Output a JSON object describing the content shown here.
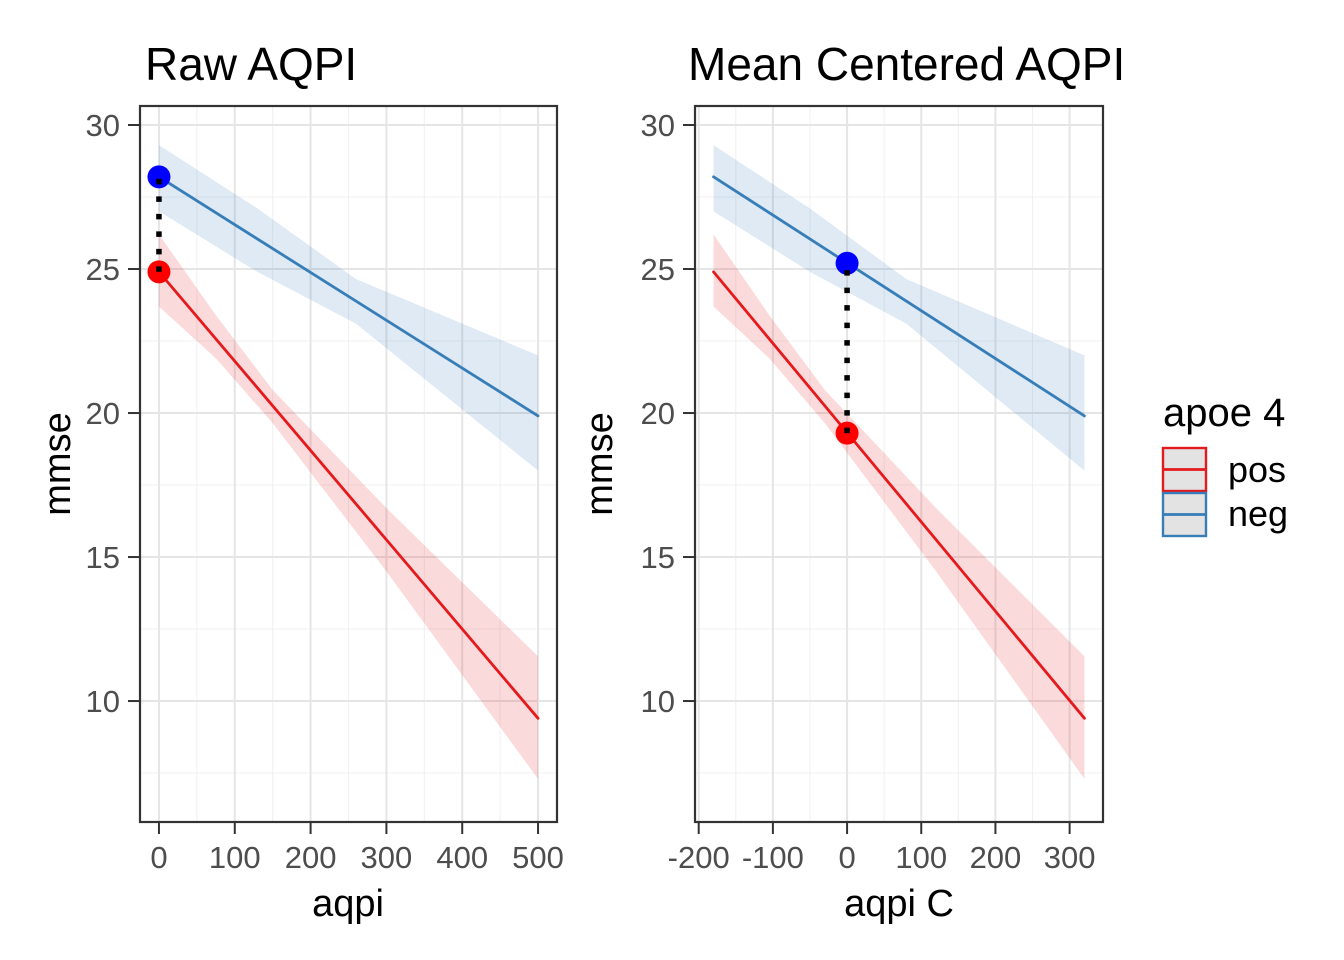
{
  "figure": {
    "background": "#FFFFFF",
    "panel_background": "#FFFFFF",
    "panel_border_color": "#333333",
    "grid_major_color": "#E5E5E5",
    "grid_minor_color": "#F0F0F0",
    "tick_color": "#333333",
    "tick_label_color": "#4D4D4D",
    "connector_color": "#000000"
  },
  "legend": {
    "title": "apoe 4",
    "position": "right",
    "key_fill": "#E3E3E3",
    "entries": [
      {
        "label": "pos",
        "color": "#E41A1C"
      },
      {
        "label": "neg",
        "color": "#377EB8"
      }
    ]
  },
  "chart_data": [
    {
      "type": "line",
      "title": "Raw AQPI",
      "xlabel": "aqpi",
      "ylabel": "mmse",
      "grid": true,
      "xlim": [
        -25,
        525
      ],
      "ylim": [
        5.8,
        30.66
      ],
      "x_ticks": [
        0,
        100,
        200,
        300,
        400,
        500
      ],
      "y_ticks": [
        10,
        15,
        20,
        25,
        30
      ],
      "x_minor": [
        50,
        150,
        250,
        350,
        450
      ],
      "y_minor": [
        7.5,
        12.5,
        17.5,
        22.5,
        27.5
      ],
      "series": [
        {
          "name": "neg",
          "color": "#377EB8",
          "x": [
            0,
            500
          ],
          "y": [
            28.2,
            19.9
          ],
          "ribbon": {
            "x": [
              0,
              130,
              260,
              500
            ],
            "upper": [
              29.3,
              27.1,
              24.65,
              22.0
            ],
            "lower": [
              27.0,
              24.9,
              23.1,
              18.0
            ]
          }
        },
        {
          "name": "pos",
          "color": "#E41A1C",
          "x": [
            0,
            500
          ],
          "y": [
            24.9,
            9.4
          ],
          "ribbon": {
            "x": [
              0,
              75,
              150,
              300,
              500
            ],
            "upper": [
              26.2,
              23.4,
              20.8,
              16.7,
              11.55
            ],
            "lower": [
              23.7,
              21.9,
              19.65,
              14.5,
              7.3
            ]
          }
        }
      ],
      "points": [
        {
          "series": "neg",
          "x": 0,
          "y": 28.2,
          "color": "#0000FF"
        },
        {
          "series": "pos",
          "x": 0,
          "y": 24.9,
          "color": "#FF0000"
        }
      ],
      "connector": {
        "x": 0,
        "y1": 24.9,
        "y2": 28.2
      }
    },
    {
      "type": "line",
      "title": "Mean Centered AQPI",
      "xlabel": "aqpi C",
      "ylabel": "mmse",
      "grid": true,
      "xlim": [
        -205,
        345
      ],
      "ylim": [
        5.8,
        30.66
      ],
      "x_ticks": [
        -200,
        -100,
        0,
        100,
        200,
        300
      ],
      "y_ticks": [
        10,
        15,
        20,
        25,
        30
      ],
      "x_minor": [
        -150,
        -50,
        50,
        150,
        250
      ],
      "y_minor": [
        7.5,
        12.5,
        17.5,
        22.5,
        27.5
      ],
      "series": [
        {
          "name": "neg",
          "color": "#377EB8",
          "x": [
            -180,
            320
          ],
          "y": [
            28.2,
            19.9
          ],
          "ribbon": {
            "x": [
              -180,
              -50,
              80,
              320
            ],
            "upper": [
              29.3,
              27.1,
              24.65,
              22.0
            ],
            "lower": [
              27.0,
              24.9,
              23.1,
              18.0
            ]
          }
        },
        {
          "name": "pos",
          "color": "#E41A1C",
          "x": [
            -180,
            320
          ],
          "y": [
            24.9,
            9.4
          ],
          "ribbon": {
            "x": [
              -180,
              -105,
              -30,
              120,
              320
            ],
            "upper": [
              26.2,
              23.4,
              20.8,
              16.7,
              11.55
            ],
            "lower": [
              23.7,
              21.9,
              19.65,
              14.5,
              7.3
            ]
          }
        }
      ],
      "points": [
        {
          "series": "neg",
          "x": 0,
          "y": 25.2,
          "color": "#0000FF"
        },
        {
          "series": "pos",
          "x": 0,
          "y": 19.3,
          "color": "#FF0000"
        }
      ],
      "connector": {
        "x": 0,
        "y1": 19.3,
        "y2": 25.2
      }
    }
  ]
}
